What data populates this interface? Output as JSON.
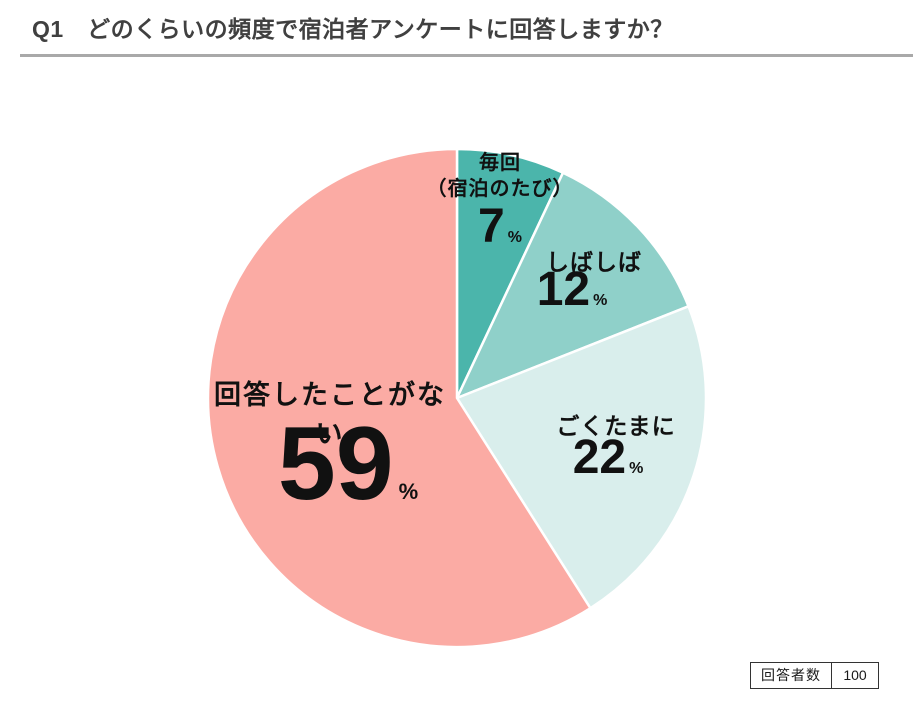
{
  "header": {
    "title": "Q1　どのくらいの頻度で宿泊者アンケートに回答しますか？"
  },
  "chart_data": {
    "type": "pie",
    "title": "Q1　どのくらいの頻度で宿泊者アンケートに回答しますか？",
    "unit": "%",
    "start_angle_deg": 0,
    "direction": "clockwise",
    "legend_position": "labels-on-slices",
    "slices": [
      {
        "label": "毎回（宿泊のたび）",
        "label_lines": [
          "毎回",
          "（宿泊のたび）"
        ],
        "value": 7,
        "color": "#4BB5AB"
      },
      {
        "label": "しばしば",
        "value": 12,
        "color": "#8FD0C9"
      },
      {
        "label": "ごくたまに",
        "value": 22,
        "color": "#D9EEEC"
      },
      {
        "label": "回答したことがない",
        "value": 59,
        "color": "#FBABA4"
      }
    ],
    "respondents": {
      "label": "回答者数",
      "value": "100"
    }
  },
  "style": {
    "slice_border_color": "#ffffff",
    "title_color": "#404040",
    "underline_color": "#a9a9a9",
    "label_color": "#111111"
  }
}
